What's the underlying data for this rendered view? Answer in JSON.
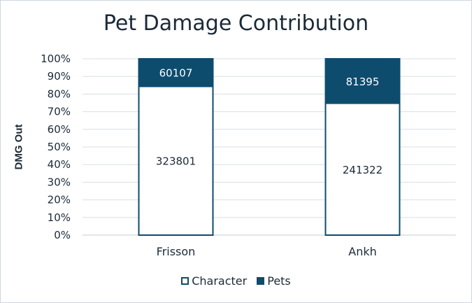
{
  "chart_data": {
    "type": "bar",
    "stacked": "percent",
    "title": "Pet Damage Contribution",
    "ylabel": "DMG Out",
    "xlabel": "",
    "categories": [
      "Frisson",
      "Ankh"
    ],
    "series": [
      {
        "name": "Character",
        "values": [
          323801,
          241322
        ],
        "color": "#ffffff",
        "stroke": "#0e4c6e"
      },
      {
        "name": "Pets",
        "values": [
          60107,
          81395
        ],
        "color": "#0e4c6e",
        "stroke": "#0e4c6e"
      }
    ],
    "yticks": [
      "0%",
      "10%",
      "20%",
      "30%",
      "40%",
      "50%",
      "60%",
      "70%",
      "80%",
      "90%",
      "100%"
    ],
    "ylim": [
      0,
      1
    ],
    "grid": true,
    "legend_position": "bottom"
  }
}
